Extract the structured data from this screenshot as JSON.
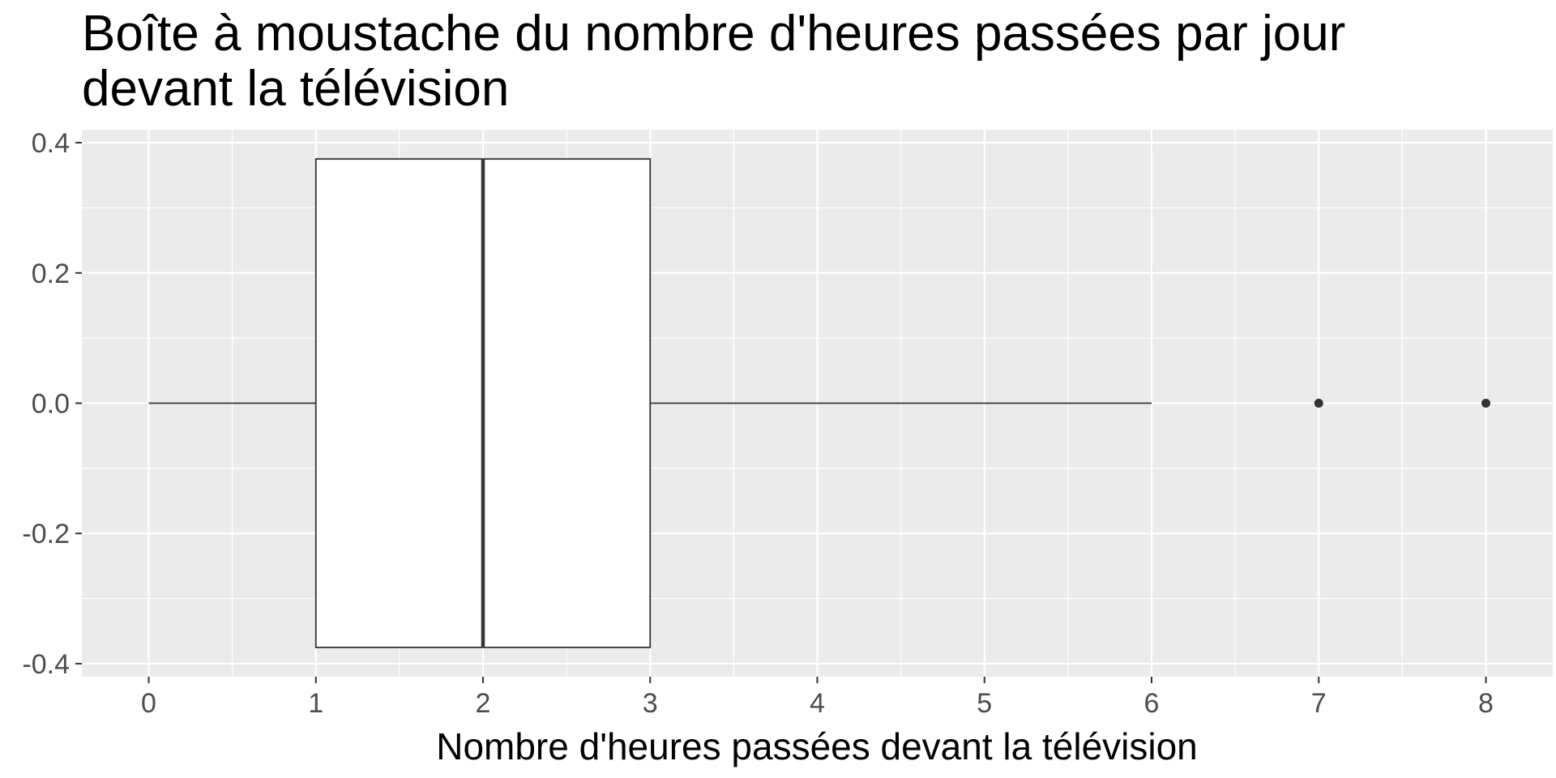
{
  "chart_data": {
    "type": "boxplot",
    "title_lines": [
      "Boîte à moustache du nombre d'heures passées par jour",
      "devant la télévision"
    ],
    "xlabel": "Nombre d'heures passées devant la télévision",
    "ylabel": "",
    "xlim": [
      -0.4,
      8.4
    ],
    "ylim": [
      -0.42,
      0.42
    ],
    "x_ticks": [
      0,
      1,
      2,
      3,
      4,
      5,
      6,
      7,
      8
    ],
    "x_tick_labels": [
      "0",
      "1",
      "2",
      "3",
      "4",
      "5",
      "6",
      "7",
      "8"
    ],
    "y_ticks": [
      0.4,
      0.2,
      0.0,
      -0.2,
      -0.4
    ],
    "y_tick_labels": [
      "0.4",
      "0.2",
      "0.0",
      "-0.2",
      "-0.4"
    ],
    "grid": true,
    "box": {
      "lower_whisker": 0,
      "q1": 1,
      "median": 2,
      "q3": 3,
      "upper_whisker": 6,
      "y_center": 0.0,
      "y_min": -0.375,
      "y_max": 0.375
    },
    "outliers": [
      7,
      8
    ],
    "colors": {
      "panel_background": "#ebebeb",
      "grid_major": "#ffffff",
      "box_fill": "#ffffff",
      "box_stroke": "#333333",
      "outlier": "#333333"
    }
  }
}
